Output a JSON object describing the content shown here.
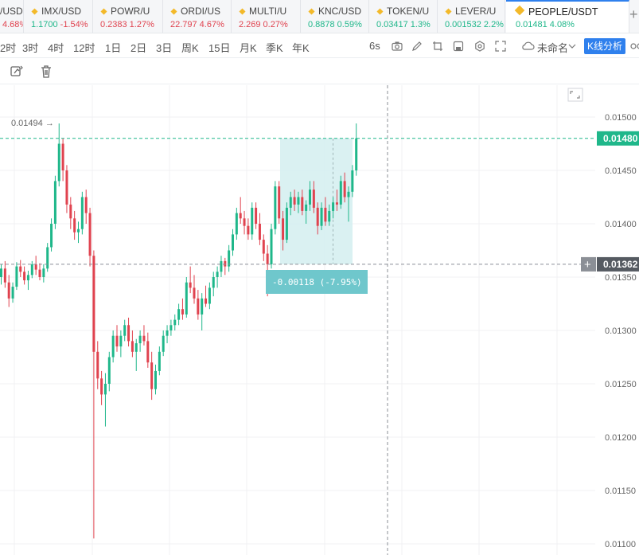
{
  "tickers": [
    {
      "symbol": "/USD",
      "price": "",
      "change": "4.68%",
      "dir": "down"
    },
    {
      "symbol": "IMX/USD",
      "price": "1.1700",
      "change": "-1.54%",
      "dir": "up_down"
    },
    {
      "symbol": "POWR/U",
      "price": "0.2383",
      "change": "1.27%",
      "dir": "down"
    },
    {
      "symbol": "ORDI/US",
      "price": "22.797",
      "change": "4.67%",
      "dir": "down"
    },
    {
      "symbol": "MULTI/U",
      "price": "2.269",
      "change": "0.27%",
      "dir": "down"
    },
    {
      "symbol": "KNC/USD",
      "price": "0.8878",
      "change": "0.59%",
      "dir": "up"
    },
    {
      "symbol": "TOKEN/U",
      "price": "0.03417",
      "change": "1.3%",
      "dir": "up"
    },
    {
      "symbol": "LEVER/U",
      "price": "0.001532",
      "change": "2.2%",
      "dir": "up"
    },
    {
      "symbol": "PEOPLE/USDT",
      "price": "0.01481",
      "change": "4.08%",
      "dir": "up",
      "active": true
    }
  ],
  "timeframes": [
    "2时",
    "3时",
    "4时",
    "12时",
    "1日",
    "2日",
    "3日",
    "周K",
    "15日",
    "月K",
    "季K",
    "年K"
  ],
  "toolbar": {
    "interval": "6s",
    "layout_name": "未命名",
    "kline_label": "K线分析"
  },
  "chart": {
    "high_label": "0.01494 →",
    "current_price": "0.01480",
    "cursor_price": "0.01362",
    "measure_label": "-0.00118 (-7.95%)",
    "price_ticks": [
      "0.01500",
      "0.01450",
      "0.01400",
      "0.01350",
      "0.01300",
      "0.01250",
      "0.01200",
      "0.01150",
      "0.01100"
    ],
    "colors": {
      "up": "#1fb78a",
      "down": "#e0434f",
      "measure_fill": "#d3eef0",
      "measure_label_bg": "#6fc7cc",
      "current_bg": "#1fb78a",
      "cursor_bg": "#8b8f96"
    }
  },
  "chart_data": {
    "type": "candlestick",
    "ylim": [
      0.01095,
      0.01515
    ],
    "candles": [
      [
        0.0135,
        0.01362,
        0.01343,
        0.01358
      ],
      [
        0.01358,
        0.01365,
        0.0134,
        0.01345
      ],
      [
        0.01345,
        0.01352,
        0.01322,
        0.0133
      ],
      [
        0.0133,
        0.01345,
        0.01326,
        0.01341
      ],
      [
        0.01341,
        0.01364,
        0.01338,
        0.0136
      ],
      [
        0.0136,
        0.01366,
        0.0135,
        0.01355
      ],
      [
        0.01355,
        0.0136,
        0.01343,
        0.01347
      ],
      [
        0.01347,
        0.01356,
        0.01338,
        0.01352
      ],
      [
        0.01352,
        0.01365,
        0.01349,
        0.01362
      ],
      [
        0.01362,
        0.0137,
        0.01352,
        0.01357
      ],
      [
        0.01357,
        0.01363,
        0.01347,
        0.0135
      ],
      [
        0.0135,
        0.01362,
        0.01345,
        0.01358
      ],
      [
        0.01358,
        0.01382,
        0.01355,
        0.01378
      ],
      [
        0.01378,
        0.01405,
        0.01374,
        0.014
      ],
      [
        0.014,
        0.01445,
        0.01395,
        0.0144
      ],
      [
        0.0144,
        0.01494,
        0.01435,
        0.01475
      ],
      [
        0.01475,
        0.0148,
        0.0144,
        0.0145
      ],
      [
        0.0145,
        0.01455,
        0.0141,
        0.01418
      ],
      [
        0.01418,
        0.01425,
        0.01395,
        0.01405
      ],
      [
        0.01405,
        0.01412,
        0.01385,
        0.01392
      ],
      [
        0.01392,
        0.01402,
        0.01382,
        0.01395
      ],
      [
        0.01395,
        0.0143,
        0.0139,
        0.01425
      ],
      [
        0.01425,
        0.01432,
        0.014,
        0.0141
      ],
      [
        0.0141,
        0.01415,
        0.0136,
        0.0137
      ],
      [
        0.0137,
        0.01375,
        0.01105,
        0.0128
      ],
      [
        0.0128,
        0.0129,
        0.01245,
        0.01255
      ],
      [
        0.01255,
        0.01262,
        0.0123,
        0.0124
      ],
      [
        0.0124,
        0.0126,
        0.0121,
        0.0125
      ],
      [
        0.0125,
        0.0128,
        0.01243,
        0.01275
      ],
      [
        0.01275,
        0.013,
        0.0127,
        0.01295
      ],
      [
        0.01295,
        0.01305,
        0.0128,
        0.01285
      ],
      [
        0.01285,
        0.013,
        0.01275,
        0.01295
      ],
      [
        0.01295,
        0.0131,
        0.0129,
        0.01305
      ],
      [
        0.01305,
        0.01312,
        0.01285,
        0.0129
      ],
      [
        0.0129,
        0.013,
        0.01275,
        0.0128
      ],
      [
        0.0128,
        0.01292,
        0.01262,
        0.01288
      ],
      [
        0.01288,
        0.013,
        0.0128,
        0.01295
      ],
      [
        0.01295,
        0.01305,
        0.01286,
        0.0129
      ],
      [
        0.0129,
        0.01298,
        0.01265,
        0.0127
      ],
      [
        0.0127,
        0.0128,
        0.01235,
        0.01245
      ],
      [
        0.01245,
        0.01268,
        0.0124,
        0.01262
      ],
      [
        0.01262,
        0.01285,
        0.01258,
        0.0128
      ],
      [
        0.0128,
        0.013,
        0.01276,
        0.01295
      ],
      [
        0.01295,
        0.01305,
        0.01288,
        0.013
      ],
      [
        0.013,
        0.0131,
        0.01295,
        0.01305
      ],
      [
        0.01305,
        0.01315,
        0.013,
        0.0131
      ],
      [
        0.0131,
        0.01325,
        0.01305,
        0.0132
      ],
      [
        0.0132,
        0.0133,
        0.0131,
        0.01315
      ],
      [
        0.01315,
        0.0135,
        0.01312,
        0.01345
      ],
      [
        0.01345,
        0.0136,
        0.01335,
        0.0134
      ],
      [
        0.0134,
        0.01352,
        0.01325,
        0.0133
      ],
      [
        0.0133,
        0.01338,
        0.0131,
        0.01315
      ],
      [
        0.01315,
        0.01335,
        0.013,
        0.0133
      ],
      [
        0.0133,
        0.01342,
        0.01322,
        0.01325
      ],
      [
        0.01325,
        0.01345,
        0.0132,
        0.0134
      ],
      [
        0.0134,
        0.01355,
        0.01332,
        0.0135
      ],
      [
        0.0135,
        0.0136,
        0.0134,
        0.01355
      ],
      [
        0.01355,
        0.0137,
        0.0135,
        0.01365
      ],
      [
        0.01365,
        0.01368,
        0.01352,
        0.0136
      ],
      [
        0.0136,
        0.0138,
        0.01355,
        0.01375
      ],
      [
        0.01375,
        0.01395,
        0.0137,
        0.0139
      ],
      [
        0.0139,
        0.01415,
        0.01385,
        0.0141
      ],
      [
        0.0141,
        0.01425,
        0.014,
        0.01405
      ],
      [
        0.01405,
        0.01412,
        0.0139,
        0.01398
      ],
      [
        0.01398,
        0.01405,
        0.01385,
        0.0139
      ],
      [
        0.0139,
        0.0142,
        0.01385,
        0.01415
      ],
      [
        0.01415,
        0.0142,
        0.01395,
        0.014
      ],
      [
        0.014,
        0.0141,
        0.0138,
        0.01385
      ],
      [
        0.01385,
        0.0139,
        0.01365,
        0.01372
      ],
      [
        0.01372,
        0.0138,
        0.01332,
        0.01362
      ],
      [
        0.01362,
        0.014,
        0.01358,
        0.01395
      ],
      [
        0.01395,
        0.0144,
        0.0139,
        0.01435
      ],
      [
        0.01435,
        0.0144,
        0.014,
        0.01405
      ],
      [
        0.01405,
        0.01412,
        0.01375,
        0.01385
      ],
      [
        0.01385,
        0.0142,
        0.01382,
        0.01415
      ],
      [
        0.01415,
        0.0143,
        0.01408,
        0.01425
      ],
      [
        0.01425,
        0.01432,
        0.01412,
        0.01418
      ],
      [
        0.01418,
        0.0143,
        0.0141,
        0.01425
      ],
      [
        0.01425,
        0.01432,
        0.01408,
        0.01412
      ],
      [
        0.01412,
        0.01422,
        0.014,
        0.01418
      ],
      [
        0.01418,
        0.0144,
        0.01412,
        0.01432
      ],
      [
        0.01432,
        0.0144,
        0.0141,
        0.01415
      ],
      [
        0.01415,
        0.0142,
        0.0139,
        0.01398
      ],
      [
        0.01398,
        0.0142,
        0.01394,
        0.01415
      ],
      [
        0.01415,
        0.01425,
        0.01398,
        0.01402
      ],
      [
        0.01402,
        0.01418,
        0.01398,
        0.01412
      ],
      [
        0.01412,
        0.01425,
        0.01405,
        0.0142
      ],
      [
        0.0142,
        0.01432,
        0.01412,
        0.01418
      ],
      [
        0.01418,
        0.01445,
        0.01414,
        0.0144
      ],
      [
        0.0144,
        0.01448,
        0.0142,
        0.01425
      ],
      [
        0.01425,
        0.01435,
        0.01402,
        0.0143
      ],
      [
        0.0143,
        0.01455,
        0.01425,
        0.0145
      ],
      [
        0.0145,
        0.01494,
        0.01445,
        0.0148
      ]
    ]
  }
}
